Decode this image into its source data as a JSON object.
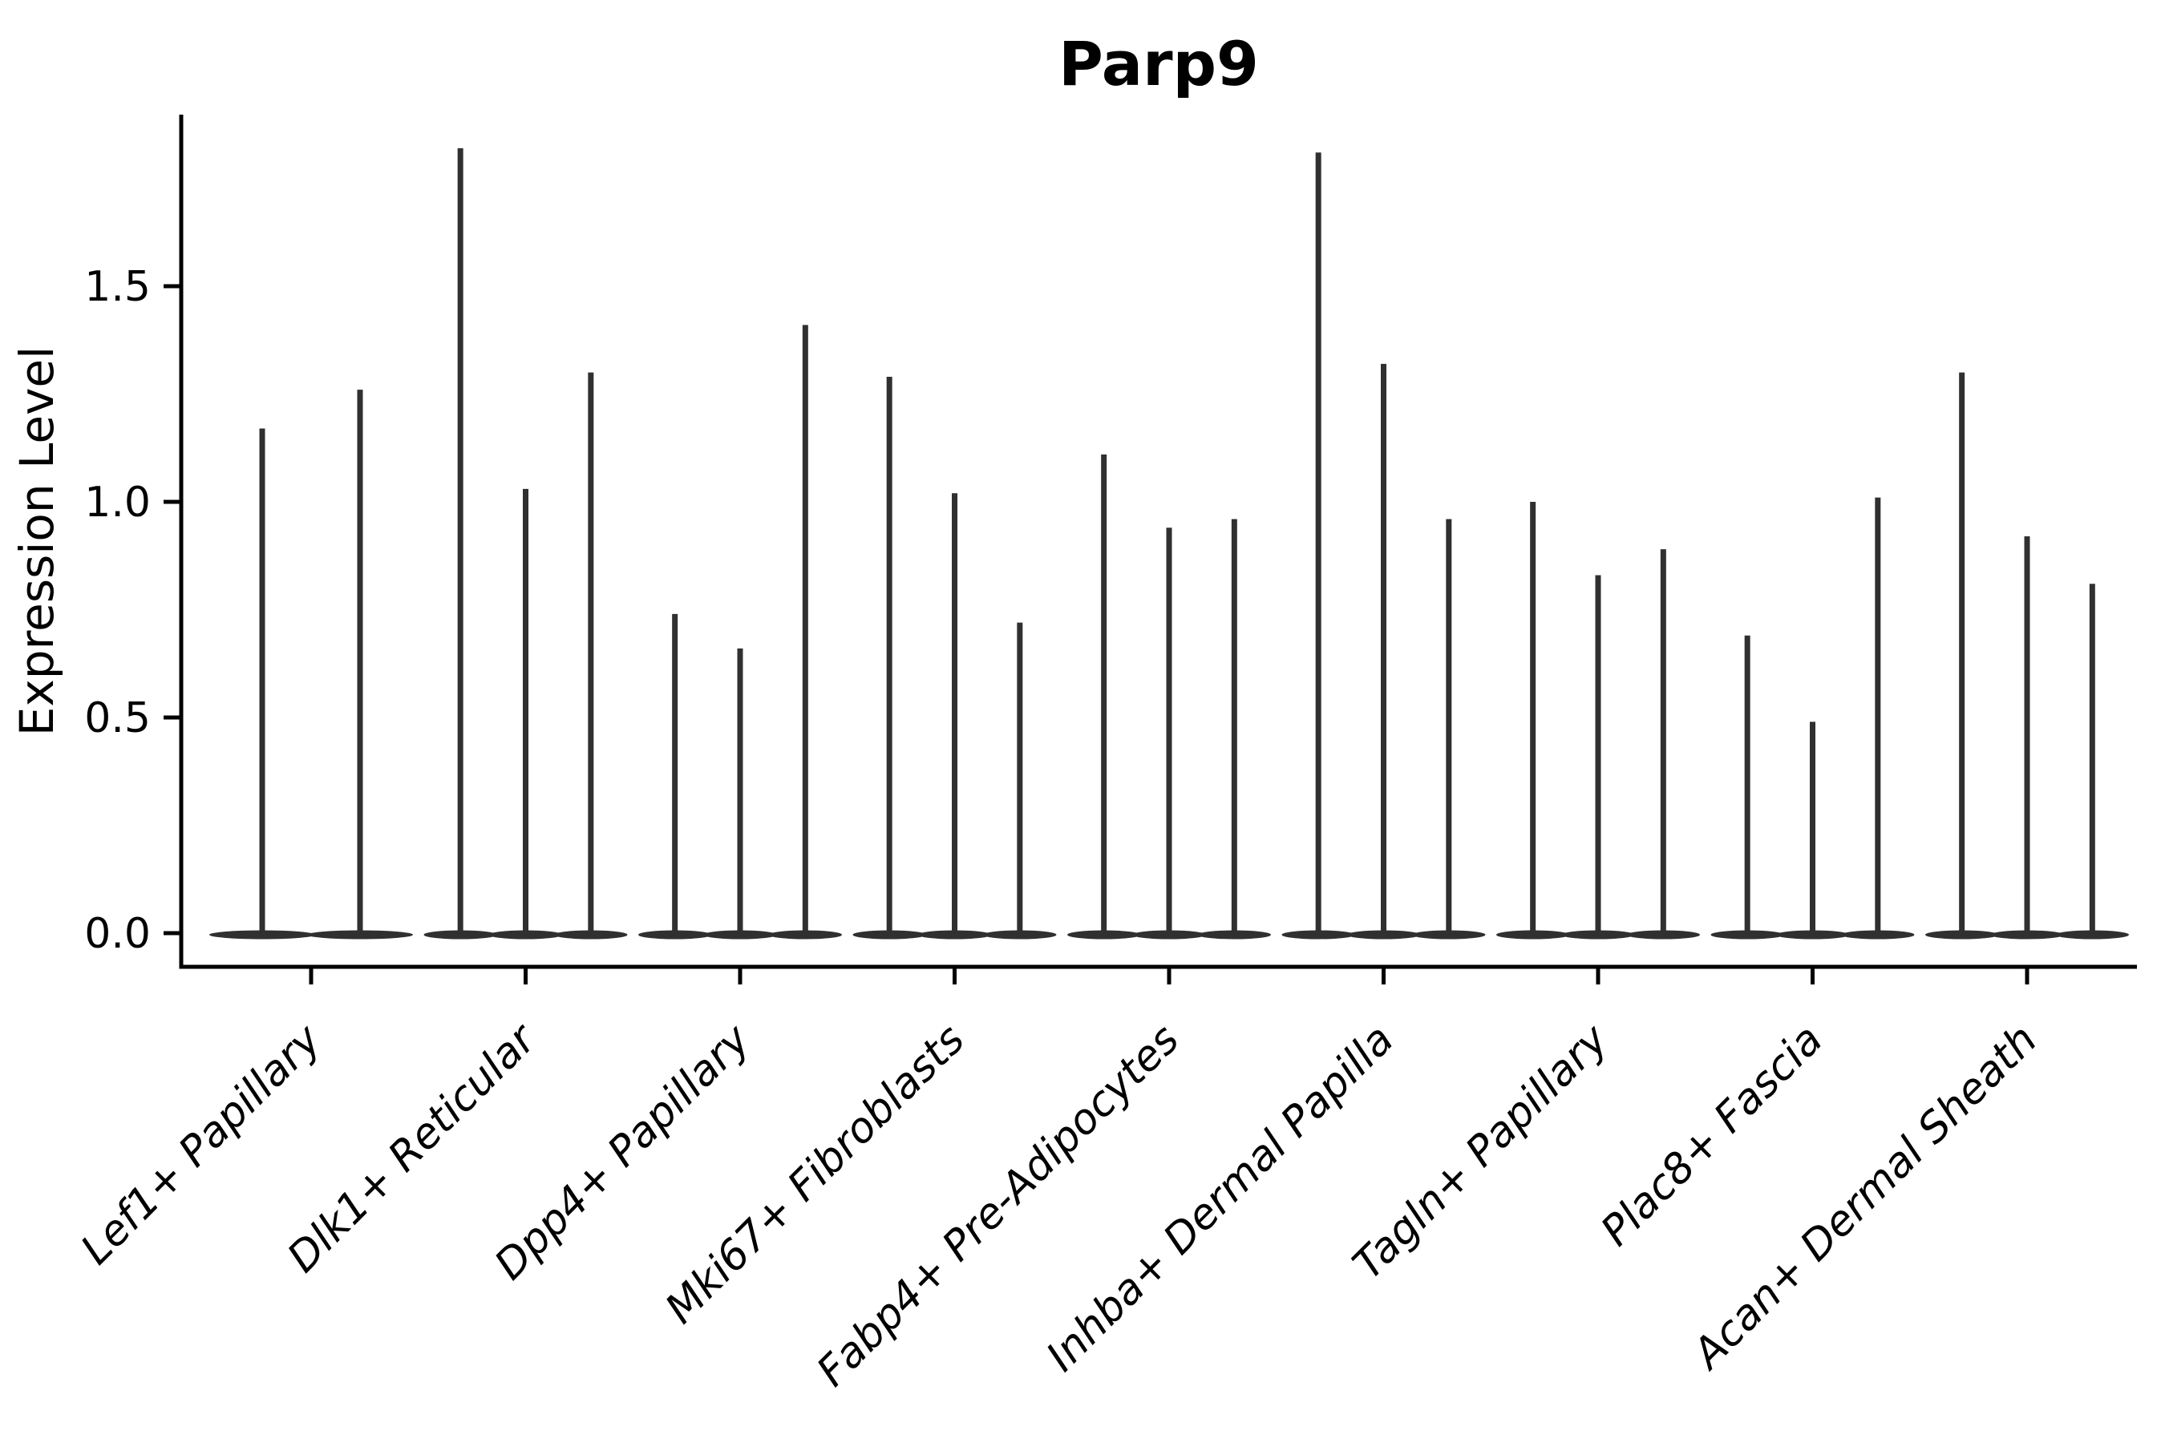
{
  "chart_data": {
    "type": "violin",
    "title": "Parp9",
    "ylabel": "Expression Level",
    "xlabel": "",
    "yticks": [
      "0.0",
      "0.5",
      "1.0",
      "1.5"
    ],
    "ylim": [
      0,
      1.9
    ],
    "grid": false,
    "legend": "none",
    "x_tick_rotation": 45,
    "violin_color": "#303030",
    "axis_color": "#000000",
    "categories": [
      "Lef1+ Papillary",
      "Dlk1+ Reticular",
      "Dpp4+ Papillary",
      "Mki67+ Fibroblasts",
      "Fabp4+ Pre-Adipocytes",
      "Inhba+ Dermal Papilla",
      "Tagln+ Papillary",
      "Plac8+ Fascia",
      "Acan+ Dermal Sheath"
    ],
    "groups": [
      {
        "label": "Lef1+ Papillary",
        "peaks": [
          1.17,
          1.26
        ]
      },
      {
        "label": "Dlk1+ Reticular",
        "peaks": [
          1.82,
          1.03,
          1.3
        ]
      },
      {
        "label": "Dpp4+ Papillary",
        "peaks": [
          0.74,
          0.66,
          1.41
        ]
      },
      {
        "label": "Mki67+ Fibroblasts",
        "peaks": [
          1.29,
          1.02,
          0.72
        ]
      },
      {
        "label": "Fabp4+ Pre-Adipocytes",
        "peaks": [
          1.11,
          0.94,
          0.96
        ]
      },
      {
        "label": "Inhba+ Dermal Papilla",
        "peaks": [
          1.81,
          1.32,
          0.96
        ]
      },
      {
        "label": "Tagln+ Papillary",
        "peaks": [
          1.0,
          0.83,
          0.89
        ]
      },
      {
        "label": "Plac8+ Fascia",
        "peaks": [
          0.69,
          0.49,
          1.01
        ]
      },
      {
        "label": "Acan+ Dermal Sheath",
        "peaks": [
          1.3,
          0.92,
          0.81
        ]
      }
    ]
  }
}
